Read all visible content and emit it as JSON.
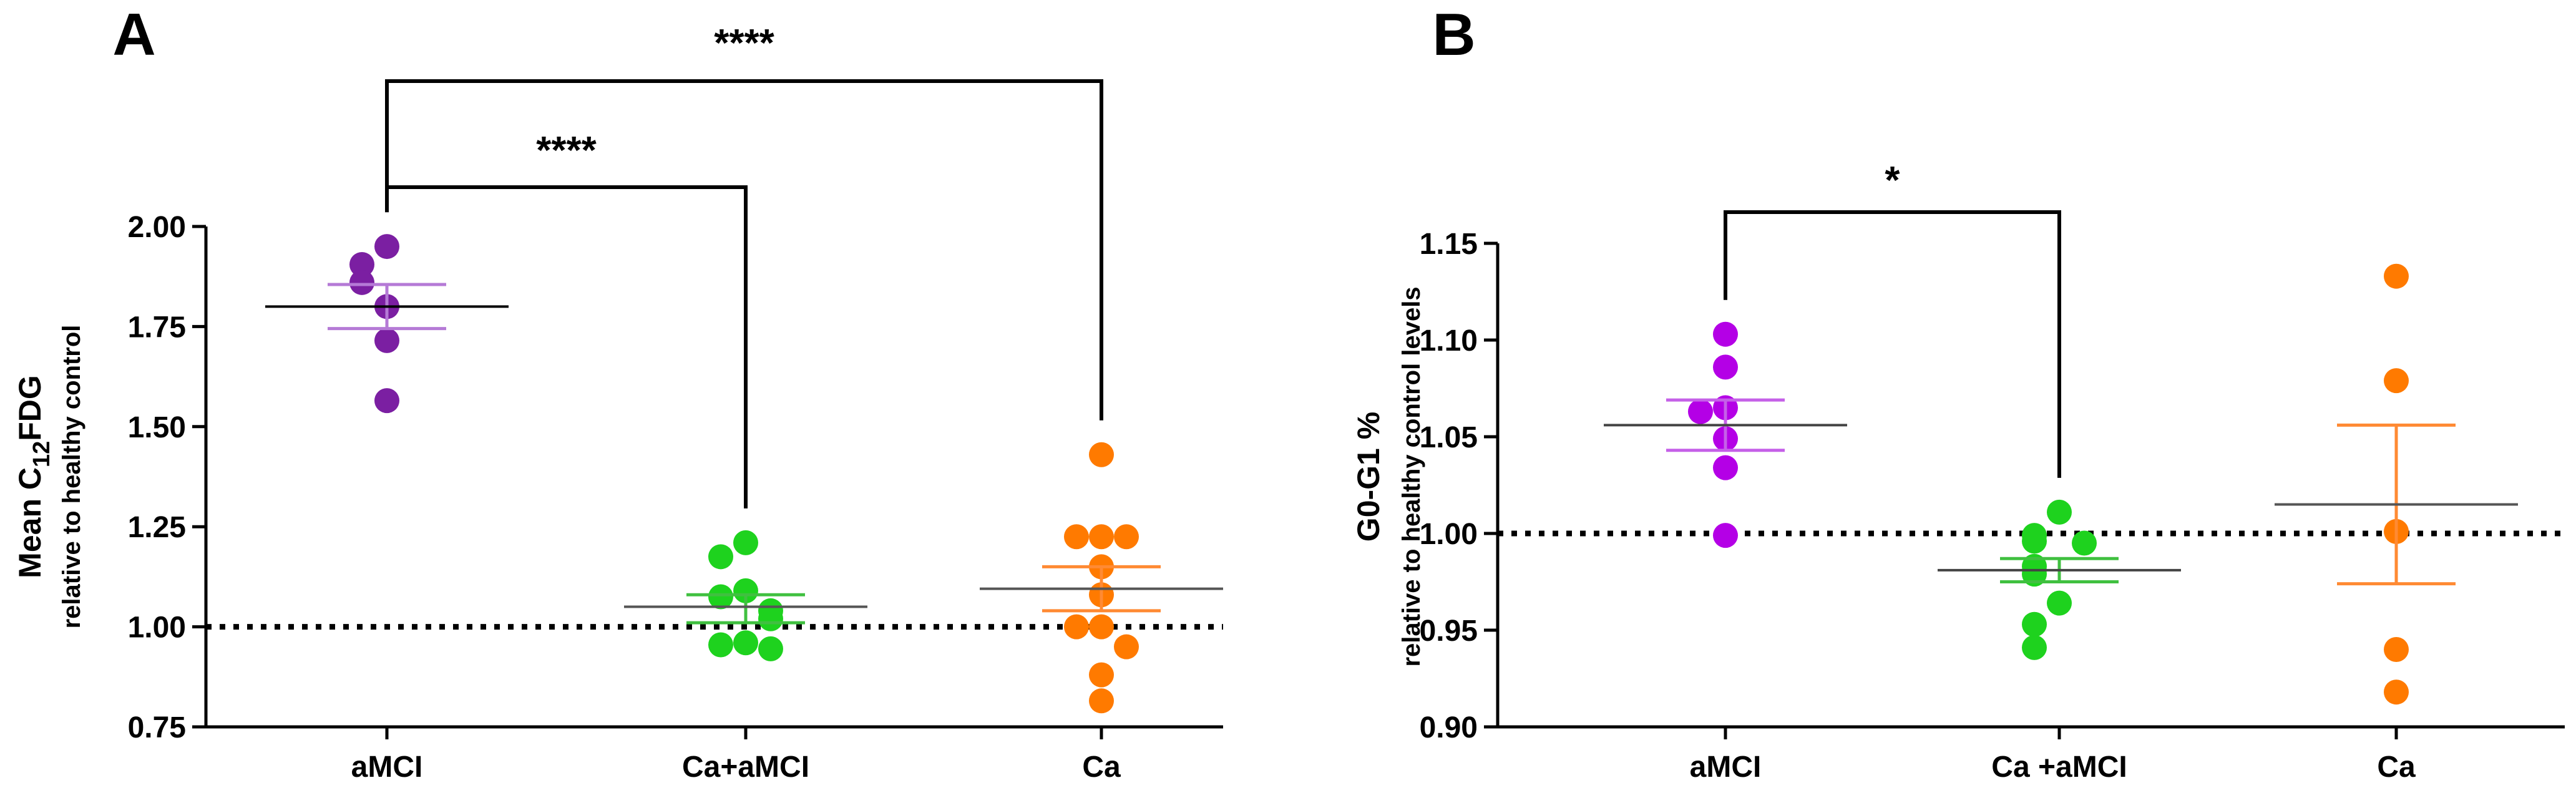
{
  "chart_data": [
    {
      "type": "scatter",
      "panel": "A",
      "ylabel_main": "Mean C",
      "ylabel_sub_script": "12",
      "ylabel_main_rest": "FDG",
      "ylabel_sub": "relative to healthy control",
      "ylim": [
        0.75,
        2.0
      ],
      "yticks": [
        "0.75",
        "1.00",
        "1.25",
        "1.50",
        "1.75",
        "2.00"
      ],
      "reference_line": 1.0,
      "categories": [
        "aMCI",
        "Ca+aMCI",
        "Ca"
      ],
      "series": [
        {
          "name": "aMCI",
          "color": "#7b1fa2",
          "points": [
            1.95,
            1.905,
            1.86,
            1.8,
            1.715,
            1.565
          ],
          "mean": 1.8,
          "sem_low": 1.745,
          "sem_high": 1.855,
          "mean_color": "#000000",
          "err_color": "#b57ad6"
        },
        {
          "name": "Ca+aMCI",
          "color": "#1ed21e",
          "points": [
            1.21,
            1.175,
            1.09,
            1.075,
            1.04,
            1.02,
            0.96,
            0.955,
            0.945
          ],
          "mean": 1.05,
          "sem_low": 1.01,
          "sem_high": 1.08,
          "mean_color": "#555555",
          "err_color": "#40c040"
        },
        {
          "name": "Ca",
          "color": "#ff7a00",
          "points": [
            1.43,
            1.225,
            1.225,
            1.225,
            1.15,
            1.08,
            1.0,
            1.0,
            0.95,
            0.88,
            0.815
          ],
          "mean": 1.095,
          "sem_low": 1.04,
          "sem_high": 1.15,
          "mean_color": "#555555",
          "err_color": "#ff8a33"
        }
      ],
      "significance": [
        {
          "from": "aMCI",
          "to": "Ca+aMCI",
          "label": "****"
        },
        {
          "from": "aMCI",
          "to": "Ca",
          "label": "****"
        }
      ]
    },
    {
      "type": "scatter",
      "panel": "B",
      "ylabel_main": "G0-G1 %",
      "ylabel_sub": "relative to healthy control levels",
      "ylim": [
        0.9,
        1.15
      ],
      "yticks": [
        "0.90",
        "0.95",
        "1.00",
        "1.05",
        "1.10",
        "1.15"
      ],
      "reference_line": 1.0,
      "categories": [
        "aMCI",
        "Ca +aMCI",
        "Ca"
      ],
      "series": [
        {
          "name": "aMCI",
          "color": "#b400e6",
          "points": [
            1.103,
            1.086,
            1.065,
            1.063,
            1.049,
            1.034,
            0.999
          ],
          "mean": 1.056,
          "sem_low": 1.043,
          "sem_high": 1.069,
          "mean_color": "#444444",
          "err_color": "#c560e8"
        },
        {
          "name": "Ca +aMCI",
          "color": "#1ed21e",
          "points": [
            1.011,
            0.999,
            0.996,
            0.995,
            0.983,
            0.979,
            0.964,
            0.953,
            0.941
          ],
          "mean": 0.981,
          "sem_low": 0.975,
          "sem_high": 0.987,
          "mean_color": "#444444",
          "err_color": "#40c040"
        },
        {
          "name": "Ca",
          "color": "#ff7a00",
          "points": [
            1.133,
            1.079,
            1.001,
            0.94,
            0.918
          ],
          "mean": 1.015,
          "sem_low": 0.974,
          "sem_high": 1.056,
          "mean_color": "#555555",
          "err_color": "#ff8a33"
        }
      ],
      "significance": [
        {
          "from": "aMCI",
          "to": "Ca +aMCI",
          "label": "*"
        }
      ]
    }
  ]
}
